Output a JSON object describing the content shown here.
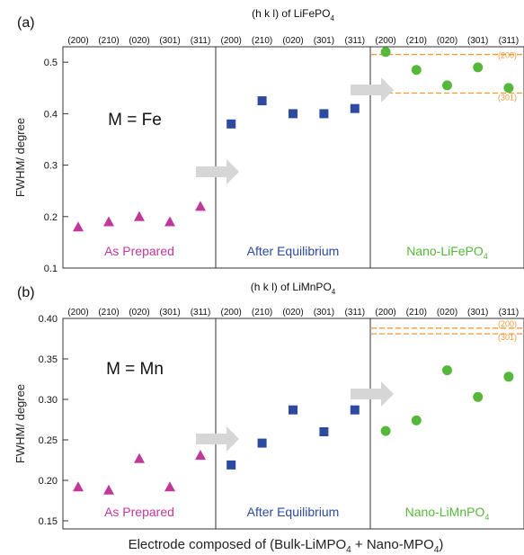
{
  "figure": {
    "xlabel": "Electrode composed of (Bulk-LiMPO",
    "xlabel_sub1": "4",
    "xlabel_mid": " + Nano-MPO",
    "xlabel_sub2": "4",
    "xlabel_end": ")"
  },
  "colors": {
    "as_prepared": "#c0389a",
    "after_equilibrium": "#2b4aa0",
    "nano": "#55b83a",
    "reference": "#ef9a3a",
    "frame": "#333333",
    "arrow": "#d6d6d6"
  },
  "chart_data": [
    {
      "type": "scatter",
      "panel_label": "(a)",
      "title": "(h k l) of LiFePO",
      "title_sub": "4",
      "ylabel": "FWHM/ degree",
      "ylim": [
        0.1,
        0.53
      ],
      "yticks": [
        "0.1",
        "0.2",
        "0.3",
        "0.4",
        "0.5"
      ],
      "annotation": "M = Fe",
      "hkl": [
        "(200)",
        "(210)",
        "(020)",
        "(301)",
        "(311)"
      ],
      "series": [
        {
          "name": "As Prepared",
          "name_sub": "",
          "marker": "triangle",
          "color_key": "as_prepared",
          "values": [
            0.18,
            0.19,
            0.2,
            0.19,
            0.22
          ]
        },
        {
          "name": "After Equilibrium",
          "name_sub": "",
          "marker": "square",
          "color_key": "after_equilibrium",
          "values": [
            0.38,
            0.425,
            0.4,
            0.4,
            0.41
          ]
        },
        {
          "name": "Nano-LiFePO",
          "name_sub": "4",
          "marker": "circle",
          "color_key": "nano",
          "values": [
            0.52,
            0.485,
            0.455,
            0.49,
            0.45
          ]
        }
      ],
      "reference_lines": [
        {
          "label": "(200)",
          "value": 0.515
        },
        {
          "label": "(301)",
          "value": 0.44
        }
      ]
    },
    {
      "type": "scatter",
      "panel_label": "(b)",
      "title": "(h k l) of LiMnPO",
      "title_sub": "4",
      "ylabel": "FWHM/ degree",
      "ylim": [
        0.14,
        0.4
      ],
      "yticks": [
        "0.15",
        "0.20",
        "0.25",
        "0.30",
        "0.35",
        "0.40"
      ],
      "annotation": "M = Mn",
      "hkl": [
        "(200)",
        "(210)",
        "(020)",
        "(301)",
        "(311)"
      ],
      "series": [
        {
          "name": "As Prepared",
          "name_sub": "",
          "marker": "triangle",
          "color_key": "as_prepared",
          "values": [
            0.192,
            0.188,
            0.227,
            0.192,
            0.231
          ]
        },
        {
          "name": "After Equilibrium",
          "name_sub": "",
          "marker": "square",
          "color_key": "after_equilibrium",
          "values": [
            0.219,
            0.246,
            0.287,
            0.26,
            0.287
          ]
        },
        {
          "name": "Nano-LiMnPO",
          "name_sub": "4",
          "marker": "circle",
          "color_key": "nano",
          "values": [
            0.261,
            0.274,
            0.336,
            0.303,
            0.328
          ]
        }
      ],
      "reference_lines": [
        {
          "label": "(200)",
          "value": 0.388
        },
        {
          "label": "(301)",
          "value": 0.381
        }
      ]
    }
  ]
}
